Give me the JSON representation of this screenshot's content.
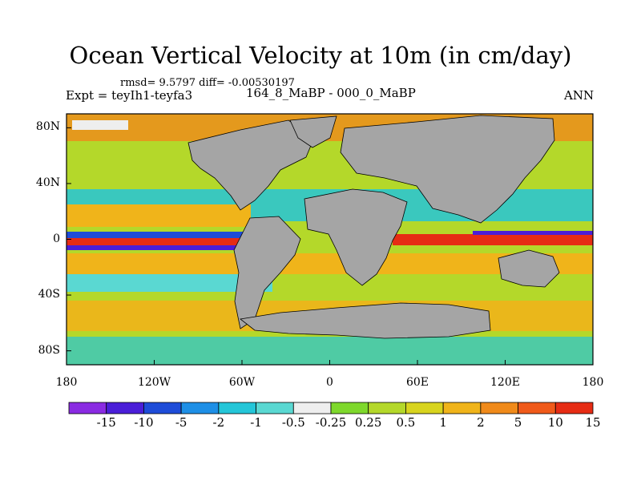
{
  "title": "Ocean Vertical Velocity at 10m (in cm/day)",
  "stats_text": "rmsd= 9.5797 diff= -0.00530197",
  "expt_text": "Expt = teyIh1-teyfa3",
  "case_text": "164_8_MaBP - 000_0_MaBP",
  "season": "ANN",
  "map": {
    "projection": "cylindrical-equidistant",
    "lon_range": [
      -180,
      180
    ],
    "lat_range": [
      -90,
      90
    ],
    "land_color": "#a5a5a5",
    "x_ticks": [
      {
        "lon": -180,
        "label": "180"
      },
      {
        "lon": -120,
        "label": "120W"
      },
      {
        "lon": -60,
        "label": "60W"
      },
      {
        "lon": 0,
        "label": "0"
      },
      {
        "lon": 60,
        "label": "60E"
      },
      {
        "lon": 120,
        "label": "120E"
      },
      {
        "lon": 180,
        "label": "180"
      }
    ],
    "y_ticks": [
      {
        "lat": 80,
        "label": "80N"
      },
      {
        "lat": 40,
        "label": "40N"
      },
      {
        "lat": 0,
        "label": "0"
      },
      {
        "lat": -40,
        "label": "40S"
      },
      {
        "lat": -80,
        "label": "80S"
      }
    ]
  },
  "colorbar": {
    "colors": [
      "#8a2be2",
      "#4a1ed8",
      "#1e4cd8",
      "#1e8fe6",
      "#24c6d8",
      "#5ad8d2",
      "#eeeeee",
      "#7ed82c",
      "#b4d82a",
      "#d8d41e",
      "#f0b41a",
      "#f08a1a",
      "#f05a1a",
      "#e62c14"
    ],
    "labels": [
      "-15",
      "-10",
      "-5",
      "-2",
      "-1",
      "-0.5",
      "-0.25",
      "0.25",
      "0.5",
      "1",
      "2",
      "5",
      "10",
      "15"
    ]
  }
}
